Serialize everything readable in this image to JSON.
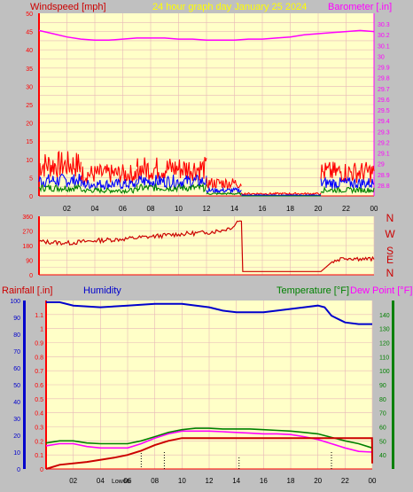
{
  "header": {
    "wind_label": "Windspeed [mph]",
    "title": "24 hour graph day   January 25 2024",
    "baro_label": "Barometer [.in]",
    "rain_label": "Rainfall [.in]",
    "humidity_label": "Humidity",
    "temp_label": "Temperature [°F]",
    "dew_label": "Dew Point [°F]"
  },
  "colors": {
    "background": "#c0c0c0",
    "plot_bg": "#ffffc8",
    "grid": "#e8b8b8",
    "axis": "#ff0000",
    "wind_gust": "#ff0000",
    "wind_avg": "#0000ff",
    "wind_low": "#008000",
    "barometer": "#ff00ff",
    "title": "#ffff00",
    "direction": "#cc0000",
    "humidity": "#0000cc",
    "temperature": "#008000",
    "dewpoint": "#ff00ff",
    "rain": "#cc0000"
  },
  "chart_data": [
    {
      "type": "bar",
      "name": "wind",
      "xticks": [
        "02",
        "04",
        "06",
        "08",
        "10",
        "12",
        "14",
        "16",
        "18",
        "20",
        "22",
        "00"
      ],
      "ylim": [
        0,
        50
      ],
      "yticks": [
        "0",
        "5",
        "10",
        "15",
        "20",
        "25",
        "30",
        "35",
        "40",
        "45",
        "50"
      ],
      "barometer_ylim": [
        28.7,
        30.4
      ],
      "barometer_ticks": [
        "28.8",
        "28.9",
        "29",
        "29.1",
        "29.2",
        "29.3",
        "29.4",
        "29.5",
        "29.6",
        "29.7",
        "29.8",
        "29.9",
        "30",
        "30.1",
        "30.2",
        "30.3"
      ],
      "segments": [
        {
          "from": 0.0,
          "to": 3.0,
          "gust": 8.5,
          "avg": 4.2,
          "low": 2.2
        },
        {
          "from": 3.0,
          "to": 7.0,
          "gust": 6.0,
          "avg": 3.2,
          "low": 1.5
        },
        {
          "from": 7.0,
          "to": 12.0,
          "gust": 7.5,
          "avg": 4.0,
          "low": 2.2
        },
        {
          "from": 12.0,
          "to": 14.5,
          "gust": 3.5,
          "avg": 1.5,
          "low": 0.6
        },
        {
          "from": 14.5,
          "to": 20.2,
          "gust": 0.6,
          "avg": 0.2,
          "low": 0.0
        },
        {
          "from": 20.2,
          "to": 24.0,
          "gust": 6.5,
          "avg": 3.5,
          "low": 1.6
        }
      ],
      "barometer": {
        "x": [
          0,
          1,
          2,
          3,
          4,
          5,
          6,
          7,
          8,
          9,
          10,
          11,
          12,
          13,
          14,
          15,
          16,
          17,
          18,
          19,
          20,
          21,
          22,
          23,
          24
        ],
        "y": [
          30.24,
          30.21,
          30.18,
          30.16,
          30.15,
          30.15,
          30.16,
          30.17,
          30.17,
          30.17,
          30.16,
          30.16,
          30.15,
          30.15,
          30.15,
          30.16,
          30.16,
          30.17,
          30.18,
          30.2,
          30.21,
          30.22,
          30.23,
          30.24,
          30.23
        ]
      }
    },
    {
      "type": "line",
      "name": "wind-direction",
      "xticks": [
        "02",
        "04",
        "06",
        "08",
        "10",
        "12",
        "14",
        "16",
        "18",
        "20",
        "22",
        "00"
      ],
      "ylim": [
        0,
        360
      ],
      "yticks": [
        "0",
        "90",
        "180",
        "270",
        "360"
      ],
      "compass": [
        "N",
        "W",
        "S",
        "E",
        "N"
      ],
      "points": [
        {
          "x": 0.0,
          "y": 205
        },
        {
          "x": 2.0,
          "y": 195
        },
        {
          "x": 4.0,
          "y": 210
        },
        {
          "x": 6.0,
          "y": 220
        },
        {
          "x": 8.0,
          "y": 235
        },
        {
          "x": 10.0,
          "y": 250
        },
        {
          "x": 12.0,
          "y": 260
        },
        {
          "x": 13.2,
          "y": 275
        },
        {
          "x": 14.0,
          "y": 300
        },
        {
          "x": 14.2,
          "y": 330
        },
        {
          "x": 14.5,
          "y": 330
        },
        {
          "x": 14.6,
          "y": 20
        },
        {
          "x": 18.0,
          "y": 20
        },
        {
          "x": 20.2,
          "y": 20
        },
        {
          "x": 21.0,
          "y": 80
        },
        {
          "x": 21.8,
          "y": 105
        },
        {
          "x": 23.0,
          "y": 100
        },
        {
          "x": 24.0,
          "y": 95
        }
      ]
    },
    {
      "type": "line",
      "name": "rain-humidity-temperature",
      "xticks": [
        "02",
        "04",
        "06",
        "08",
        "10",
        "12",
        "14",
        "16",
        "18",
        "20",
        "22",
        "00"
      ],
      "rain_ylim": [
        0,
        1.2
      ],
      "rain_ticks": [
        "0",
        "0.1",
        "0.2",
        "0.3",
        "0.4",
        "0.5",
        "0.6",
        "0.7",
        "0.8",
        "0.9",
        "1",
        "1.1"
      ],
      "humidity_ylim": [
        0,
        100
      ],
      "humidity_ticks": [
        "0",
        "10",
        "20",
        "30",
        "40",
        "50",
        "60",
        "70",
        "80",
        "90",
        "100"
      ],
      "temp_ylim": [
        30,
        150
      ],
      "temp_ticks": [
        "40",
        "50",
        "60",
        "70",
        "80",
        "90",
        "100",
        "110",
        "120",
        "130",
        "140"
      ],
      "annotation": "Low66",
      "humidity": {
        "x": [
          0,
          1,
          2,
          4,
          6,
          8,
          10,
          12,
          13,
          14,
          16,
          18,
          19,
          20,
          20.5,
          21,
          22,
          23,
          24
        ],
        "y": [
          99,
          99,
          97,
          96,
          97,
          98,
          98,
          96,
          94,
          93,
          93,
          95,
          96,
          97,
          96,
          91,
          87,
          86,
          86
        ]
      },
      "temperature": {
        "x": [
          0,
          1,
          2,
          3,
          4,
          5,
          6,
          7,
          8,
          9,
          10,
          11,
          12,
          13,
          14,
          15,
          16,
          17,
          18,
          19,
          20,
          21,
          22,
          23,
          24
        ],
        "y": [
          48.5,
          50,
          50,
          48.5,
          48,
          48,
          48,
          50,
          53,
          56,
          58,
          59,
          59,
          58.5,
          58.5,
          58.5,
          58,
          57.5,
          57,
          56,
          55,
          52.5,
          50,
          48,
          45
        ]
      },
      "dewpoint": {
        "x": [
          0,
          1,
          2,
          3,
          4,
          5,
          6,
          7,
          8,
          9,
          10,
          11,
          12,
          13,
          14,
          15,
          16,
          17,
          18,
          19,
          20,
          21,
          22,
          23,
          24
        ],
        "y": [
          46.5,
          48,
          48,
          46,
          45,
          45,
          45,
          48,
          52,
          55,
          57,
          57,
          57,
          56.5,
          56,
          55.5,
          55,
          55,
          54.5,
          53,
          51,
          48,
          45,
          42.5,
          42
        ]
      },
      "rain": {
        "x": [
          0,
          1,
          3,
          5,
          6,
          7,
          8,
          9,
          10,
          12,
          14,
          16,
          18,
          20,
          22,
          23.99,
          24
        ],
        "y": [
          0.0,
          0.03,
          0.05,
          0.08,
          0.1,
          0.13,
          0.17,
          0.2,
          0.22,
          0.22,
          0.22,
          0.22,
          0.22,
          0.22,
          0.22,
          0.22,
          0.04
        ]
      }
    }
  ]
}
